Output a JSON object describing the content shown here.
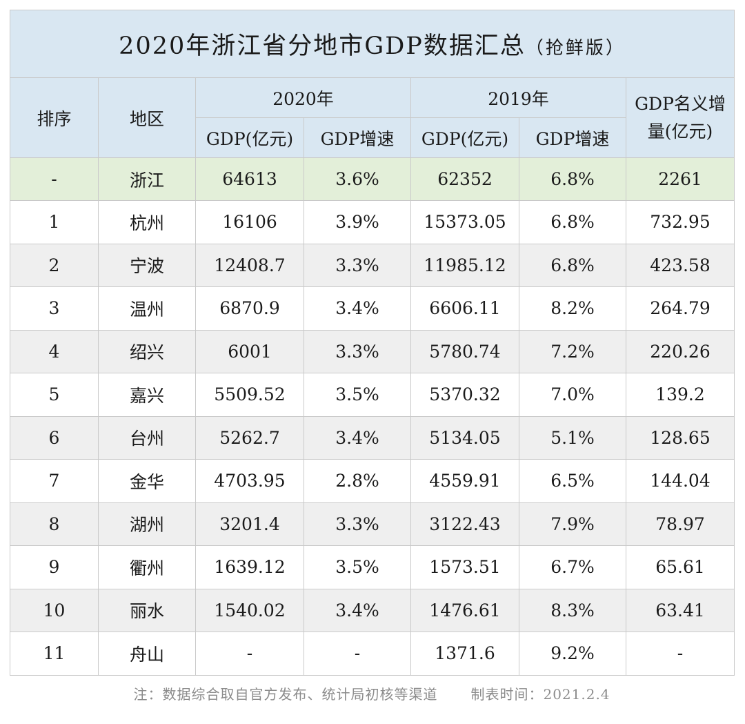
{
  "title": "2020年浙江省分地市GDP数据汇总",
  "subtitle": "（抢鲜版）",
  "headers": {
    "rank": "排序",
    "region": "地区",
    "year2020": "2020年",
    "year2019": "2019年",
    "gdp": "GDP(亿元)",
    "growth": "GDP增速",
    "increase_line1": "GDP名义增",
    "increase_line2": "量(亿元)"
  },
  "province": {
    "rank": "-",
    "region": "浙江",
    "gdp2020": "64613",
    "growth2020": "3.6%",
    "gdp2019": "62352",
    "growth2019": "6.8%",
    "increase": "2261"
  },
  "rows": [
    {
      "rank": "1",
      "region": "杭州",
      "gdp2020": "16106",
      "growth2020": "3.9%",
      "gdp2019": "15373.05",
      "growth2019": "6.8%",
      "increase": "732.95"
    },
    {
      "rank": "2",
      "region": "宁波",
      "gdp2020": "12408.7",
      "growth2020": "3.3%",
      "gdp2019": "11985.12",
      "growth2019": "6.8%",
      "increase": "423.58"
    },
    {
      "rank": "3",
      "region": "温州",
      "gdp2020": "6870.9",
      "growth2020": "3.4%",
      "gdp2019": "6606.11",
      "growth2019": "8.2%",
      "increase": "264.79"
    },
    {
      "rank": "4",
      "region": "绍兴",
      "gdp2020": "6001",
      "growth2020": "3.3%",
      "gdp2019": "5780.74",
      "growth2019": "7.2%",
      "increase": "220.26"
    },
    {
      "rank": "5",
      "region": "嘉兴",
      "gdp2020": "5509.52",
      "growth2020": "3.5%",
      "gdp2019": "5370.32",
      "growth2019": "7.0%",
      "increase": "139.2"
    },
    {
      "rank": "6",
      "region": "台州",
      "gdp2020": "5262.7",
      "growth2020": "3.4%",
      "gdp2019": "5134.05",
      "growth2019": "5.1%",
      "increase": "128.65"
    },
    {
      "rank": "7",
      "region": "金华",
      "gdp2020": "4703.95",
      "growth2020": "2.8%",
      "gdp2019": "4559.91",
      "growth2019": "6.5%",
      "increase": "144.04"
    },
    {
      "rank": "8",
      "region": "湖州",
      "gdp2020": "3201.4",
      "growth2020": "3.3%",
      "gdp2019": "3122.43",
      "growth2019": "7.9%",
      "increase": "78.97"
    },
    {
      "rank": "9",
      "region": "衢州",
      "gdp2020": "1639.12",
      "growth2020": "3.5%",
      "gdp2019": "1573.51",
      "growth2019": "6.7%",
      "increase": "65.61"
    },
    {
      "rank": "10",
      "region": "丽水",
      "gdp2020": "1540.02",
      "growth2020": "3.4%",
      "gdp2019": "1476.61",
      "growth2019": "8.3%",
      "increase": "63.41"
    },
    {
      "rank": "11",
      "region": "舟山",
      "gdp2020": "-",
      "growth2020": "-",
      "gdp2019": "1371.6",
      "growth2019": "9.2%",
      "increase": "-"
    }
  ],
  "note": "注：数据综合取自官方发布、统计局初核等渠道",
  "made_time": "制表时间：2021.2.4",
  "colors": {
    "header_bg": "#d9e7f2",
    "province_bg": "#e3efd9",
    "even_row_bg": "#efefef",
    "border": "#c9c9c9"
  },
  "chart_data": {
    "type": "table",
    "title": "2020年浙江省分地市GDP数据汇总",
    "columns": [
      "排序",
      "地区",
      "2020年 GDP(亿元)",
      "2020年 GDP增速",
      "2019年 GDP(亿元)",
      "2019年 GDP增速",
      "GDP名义增量(亿元)"
    ],
    "rows": [
      [
        "-",
        "浙江",
        64613,
        "3.6%",
        62352,
        "6.8%",
        2261
      ],
      [
        "1",
        "杭州",
        16106,
        "3.9%",
        15373.05,
        "6.8%",
        732.95
      ],
      [
        "2",
        "宁波",
        12408.7,
        "3.3%",
        11985.12,
        "6.8%",
        423.58
      ],
      [
        "3",
        "温州",
        6870.9,
        "3.4%",
        6606.11,
        "8.2%",
        264.79
      ],
      [
        "4",
        "绍兴",
        6001,
        "3.3%",
        5780.74,
        "7.2%",
        220.26
      ],
      [
        "5",
        "嘉兴",
        5509.52,
        "3.5%",
        5370.32,
        "7.0%",
        139.2
      ],
      [
        "6",
        "台州",
        5262.7,
        "3.4%",
        5134.05,
        "5.1%",
        128.65
      ],
      [
        "7",
        "金华",
        4703.95,
        "2.8%",
        4559.91,
        "6.5%",
        144.04
      ],
      [
        "8",
        "湖州",
        3201.4,
        "3.3%",
        3122.43,
        "7.9%",
        78.97
      ],
      [
        "9",
        "衢州",
        1639.12,
        "3.5%",
        1573.51,
        "6.7%",
        65.61
      ],
      [
        "10",
        "丽水",
        1540.02,
        "3.4%",
        1476.61,
        "8.3%",
        63.41
      ],
      [
        "11",
        "舟山",
        "-",
        "-",
        1371.6,
        "9.2%",
        "-"
      ]
    ]
  }
}
